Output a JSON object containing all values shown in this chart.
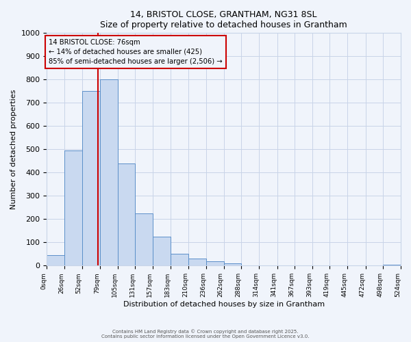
{
  "title_line1": "14, BRISTOL CLOSE, GRANTHAM, NG31 8SL",
  "title_line2": "Size of property relative to detached houses in Grantham",
  "xlabel": "Distribution of detached houses by size in Grantham",
  "ylabel": "Number of detached properties",
  "bin_edges": [
    0,
    26,
    52,
    79,
    105,
    131,
    157,
    183,
    210,
    236,
    262,
    288,
    314,
    341,
    367,
    393,
    419,
    445,
    472,
    498,
    524
  ],
  "bar_heights": [
    45,
    495,
    750,
    800,
    440,
    225,
    125,
    52,
    30,
    18,
    10,
    0,
    0,
    0,
    0,
    0,
    0,
    0,
    0,
    5
  ],
  "tick_labels": [
    "0sqm",
    "26sqm",
    "52sqm",
    "79sqm",
    "105sqm",
    "131sqm",
    "157sqm",
    "183sqm",
    "210sqm",
    "236sqm",
    "262sqm",
    "288sqm",
    "314sqm",
    "341sqm",
    "367sqm",
    "393sqm",
    "419sqm",
    "445sqm",
    "472sqm",
    "498sqm",
    "524sqm"
  ],
  "bar_color": "#c9d9f0",
  "bar_edge_color": "#5b8fc9",
  "vline_x": 76,
  "vline_color": "#cc0000",
  "ylim": [
    0,
    1000
  ],
  "yticks": [
    0,
    100,
    200,
    300,
    400,
    500,
    600,
    700,
    800,
    900,
    1000
  ],
  "annotation_title": "14 BRISTOL CLOSE: 76sqm",
  "annotation_line1": "← 14% of detached houses are smaller (425)",
  "annotation_line2": "85% of semi-detached houses are larger (2,506) →",
  "annotation_box_color": "#cc0000",
  "footer_line1": "Contains HM Land Registry data © Crown copyright and database right 2025.",
  "footer_line2": "Contains public sector information licensed under the Open Government Licence v3.0.",
  "bg_color": "#f0f4fb",
  "grid_color": "#c8d4e8"
}
